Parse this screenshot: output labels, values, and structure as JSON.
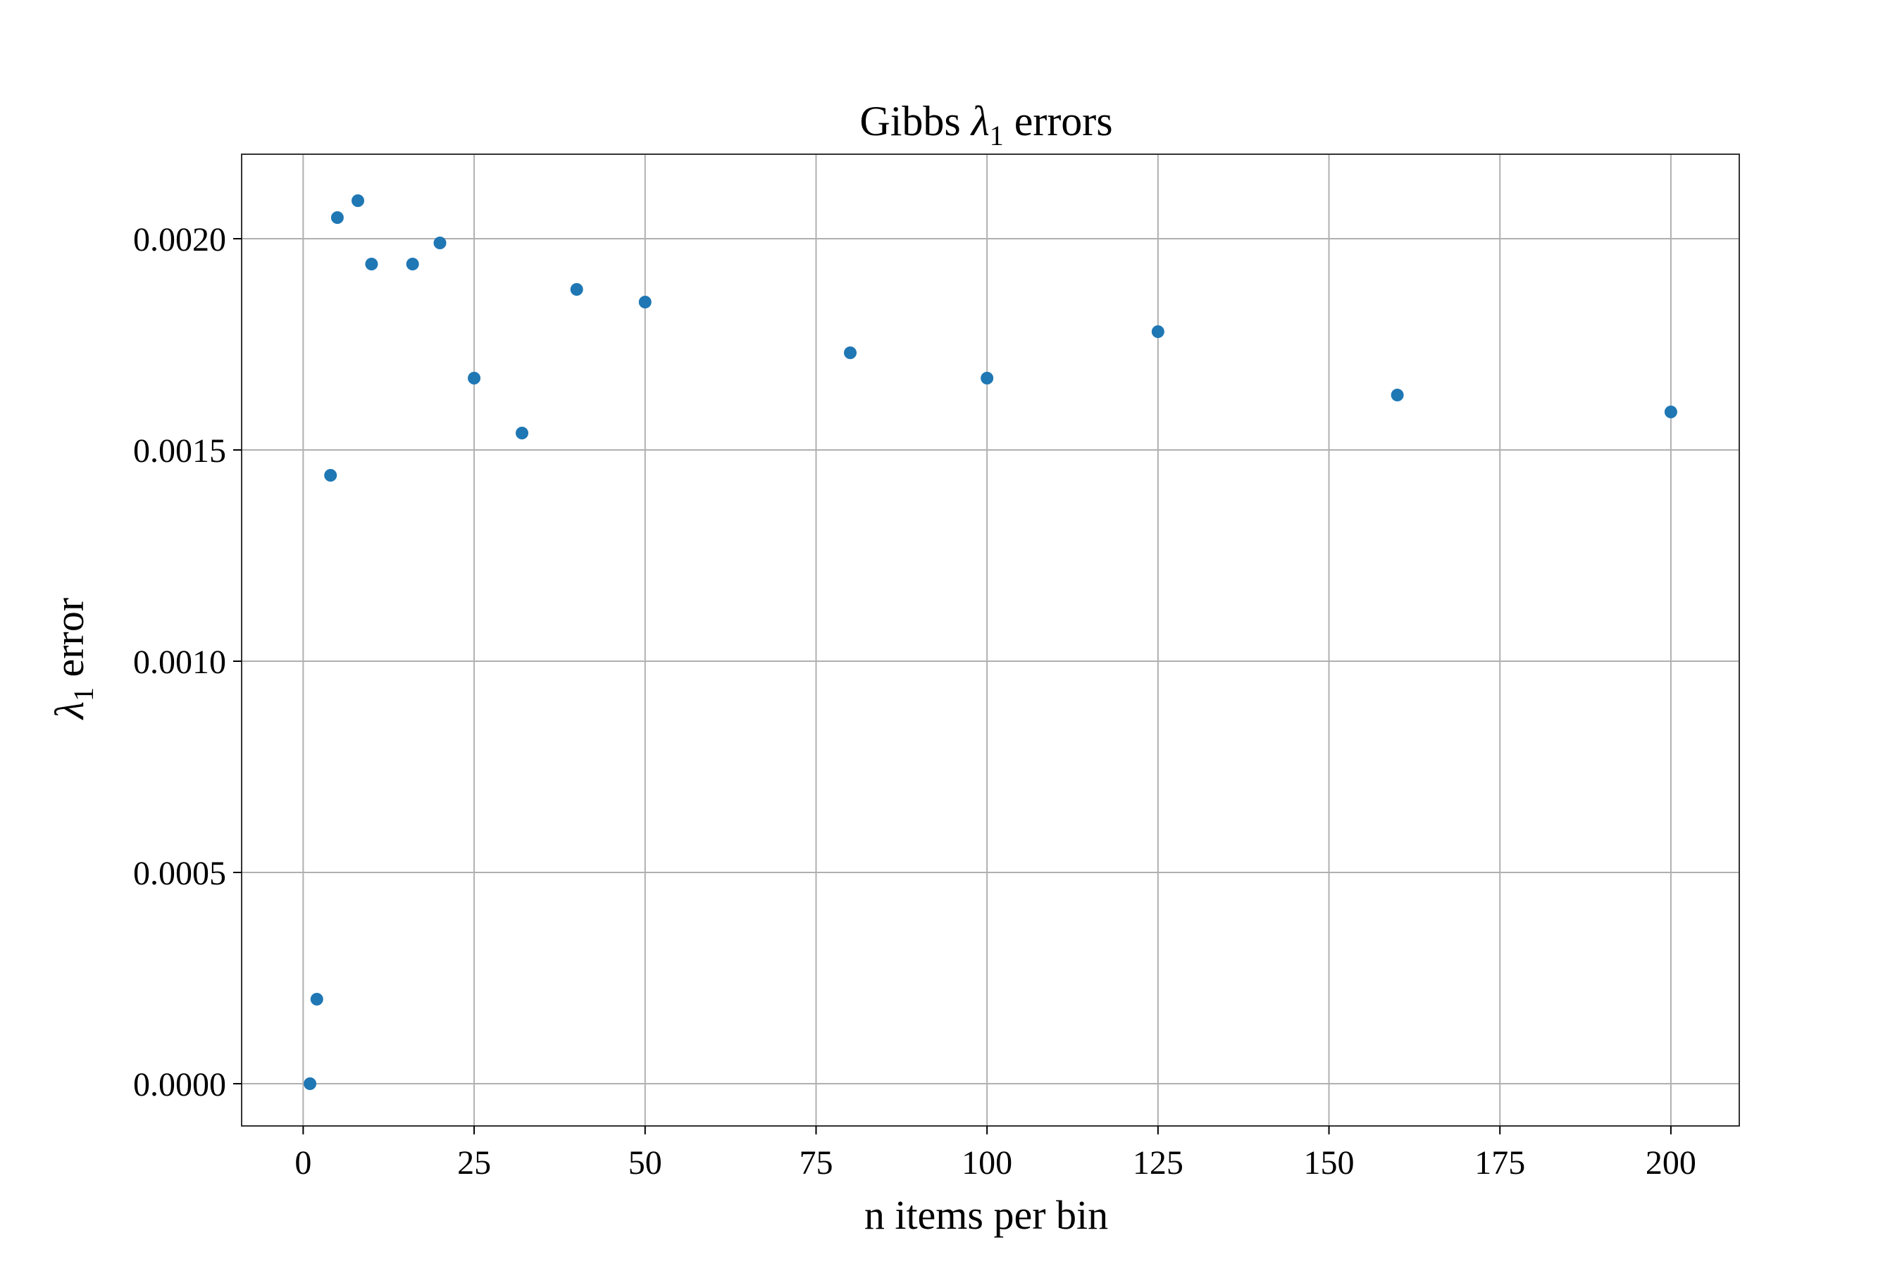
{
  "chart_data": {
    "type": "scatter",
    "title_main": "Gibbs ",
    "title_symbol": "λ",
    "title_subscript": "1",
    "title_rest": " errors",
    "xlabel": "n items per bin",
    "ylabel_symbol": "λ",
    "ylabel_subscript": "1",
    "ylabel_rest": " error",
    "xlim": [
      -9,
      210
    ],
    "ylim": [
      -0.0001,
      0.0022
    ],
    "xticks": [
      0,
      25,
      50,
      75,
      100,
      125,
      150,
      175,
      200
    ],
    "xtick_labels": [
      "0",
      "25",
      "50",
      "75",
      "100",
      "125",
      "150",
      "175",
      "200"
    ],
    "yticks": [
      0.0,
      0.0005,
      0.001,
      0.0015,
      0.002
    ],
    "ytick_labels": [
      "0.0000",
      "0.0005",
      "0.0010",
      "0.0015",
      "0.0020"
    ],
    "grid": true,
    "marker_color": "#1f77b4",
    "grid_color": "#b0b0b0",
    "points": [
      {
        "x": 1,
        "y": 0.0
      },
      {
        "x": 2,
        "y": 0.0002
      },
      {
        "x": 4,
        "y": 0.00144
      },
      {
        "x": 5,
        "y": 0.00205
      },
      {
        "x": 8,
        "y": 0.00209
      },
      {
        "x": 10,
        "y": 0.00194
      },
      {
        "x": 16,
        "y": 0.00194
      },
      {
        "x": 20,
        "y": 0.00199
      },
      {
        "x": 25,
        "y": 0.00167
      },
      {
        "x": 32,
        "y": 0.00154
      },
      {
        "x": 40,
        "y": 0.00188
      },
      {
        "x": 50,
        "y": 0.00185
      },
      {
        "x": 80,
        "y": 0.00173
      },
      {
        "x": 100,
        "y": 0.00167
      },
      {
        "x": 125,
        "y": 0.00178
      },
      {
        "x": 160,
        "y": 0.00163
      },
      {
        "x": 200,
        "y": 0.00159
      }
    ]
  }
}
